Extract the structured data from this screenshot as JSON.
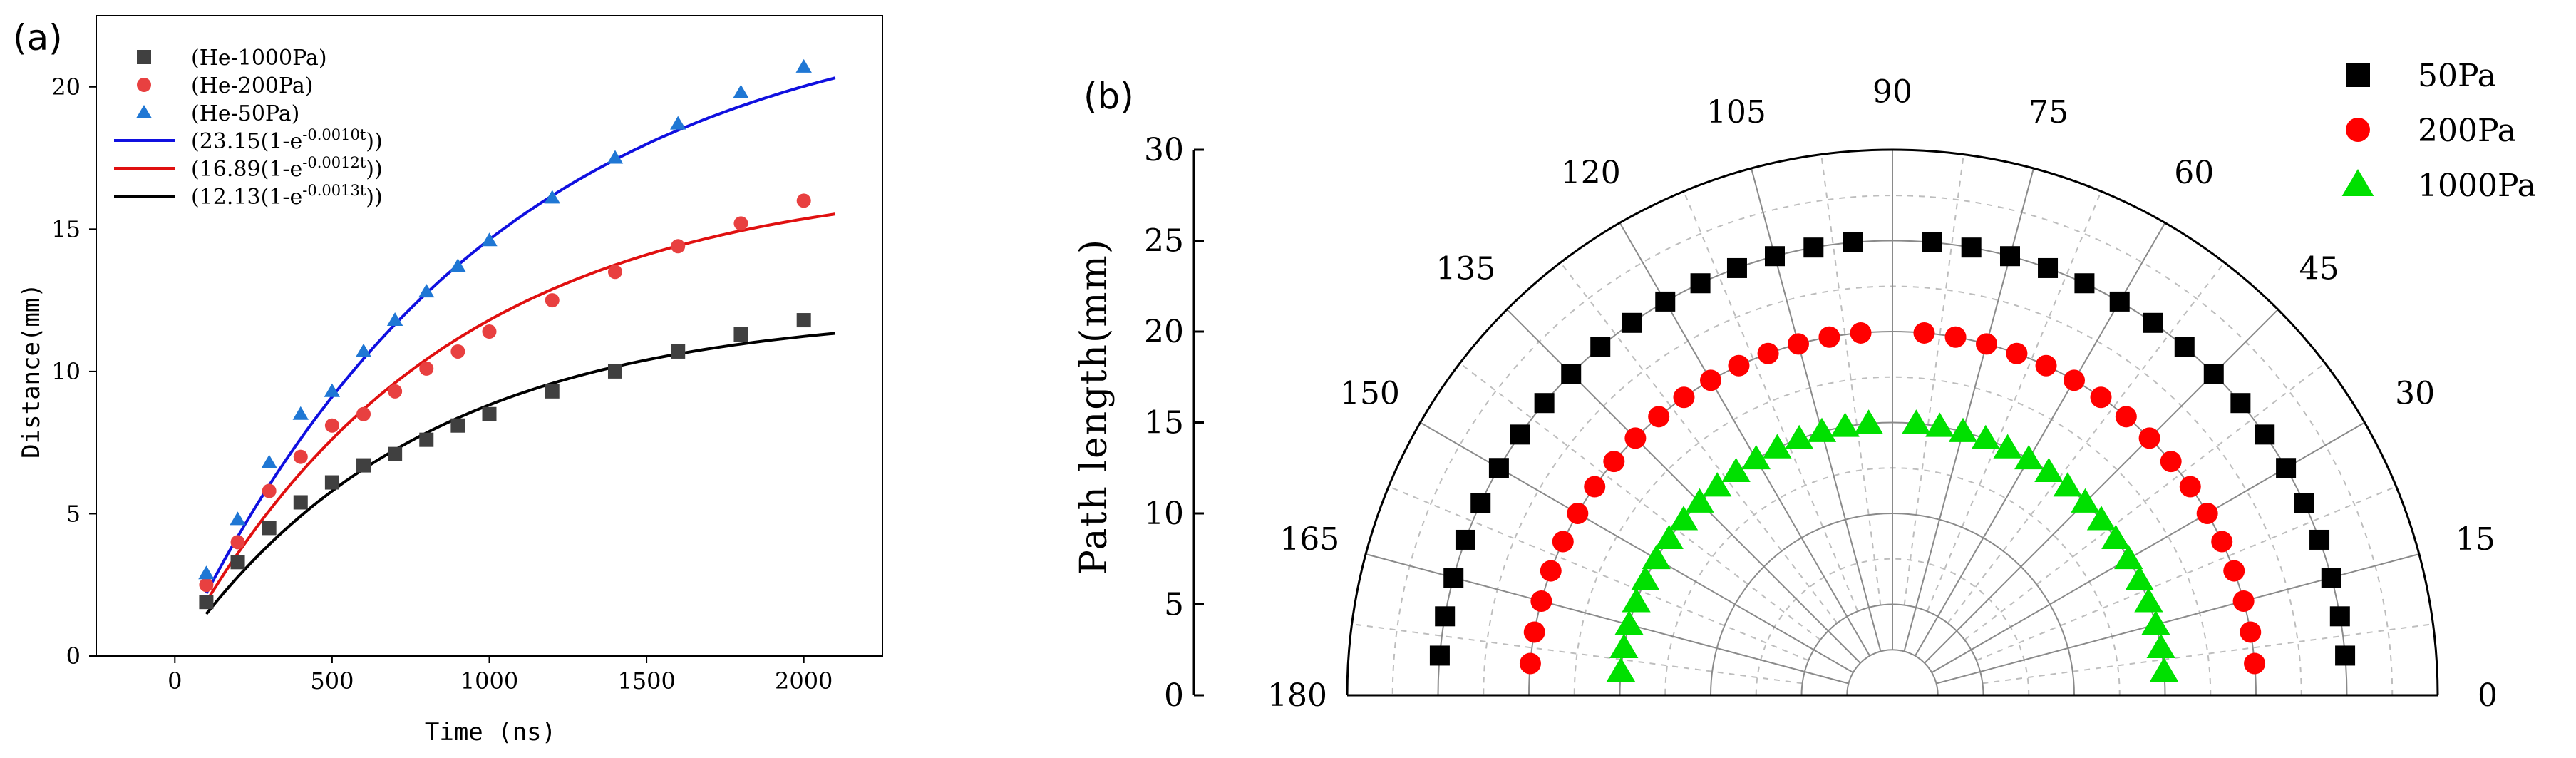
{
  "chart_data": [
    {
      "panel_label": "(a)",
      "type": "scatter",
      "xlabel": "Time (ns)",
      "ylabel": "Distance(mm)",
      "xlim": [
        -250,
        2250
      ],
      "ylim": [
        0,
        22.5
      ],
      "xticks": [
        0,
        500,
        1000,
        1500,
        2000
      ],
      "yticks": [
        0,
        5,
        10,
        15,
        20
      ],
      "legend_position": "top-left",
      "series": [
        {
          "name": "(He-1000Pa)",
          "marker": "square",
          "color": "#404040",
          "x": [
            100,
            200,
            300,
            400,
            500,
            600,
            700,
            800,
            900,
            1000,
            1200,
            1400,
            1600,
            1800,
            2000
          ],
          "y": [
            1.9,
            3.3,
            4.5,
            5.4,
            6.1,
            6.7,
            7.1,
            7.6,
            8.1,
            8.5,
            9.3,
            10.0,
            10.7,
            11.3,
            11.8
          ]
        },
        {
          "name": "(He-200Pa)",
          "marker": "circle",
          "color": "#e84040",
          "x": [
            100,
            200,
            300,
            400,
            500,
            600,
            700,
            800,
            900,
            1000,
            1200,
            1400,
            1600,
            1800,
            2000
          ],
          "y": [
            2.5,
            4.0,
            5.8,
            7.0,
            8.1,
            8.5,
            9.3,
            10.1,
            10.7,
            11.4,
            12.5,
            13.5,
            14.4,
            15.2,
            16.0
          ]
        },
        {
          "name": "(He-50Pa)",
          "marker": "triangle",
          "color": "#1f77d4",
          "x": [
            100,
            200,
            300,
            400,
            500,
            600,
            700,
            800,
            900,
            1000,
            1200,
            1400,
            1600,
            1800,
            2000
          ],
          "y": [
            2.9,
            4.8,
            6.8,
            8.5,
            9.3,
            10.7,
            11.8,
            12.8,
            13.7,
            14.6,
            16.1,
            17.5,
            18.7,
            19.8,
            20.7
          ]
        }
      ],
      "fits": [
        {
          "label_prefix": "(23.15(1-e",
          "label_exp": "-0.0010t",
          "label_suffix": "))",
          "A": 23.15,
          "k": 0.001,
          "color": "#1010e0"
        },
        {
          "label_prefix": "(16.89(1-e",
          "label_exp": "-0.0012t",
          "label_suffix": "))",
          "A": 16.89,
          "k": 0.0012,
          "color": "#e01010"
        },
        {
          "label_prefix": "(12.13(1-e",
          "label_exp": "-0.0013t",
          "label_suffix": "))",
          "A": 12.13,
          "k": 0.0013,
          "color": "#000000"
        }
      ],
      "fit_x_range": [
        100,
        2100
      ]
    },
    {
      "panel_label": "(b)",
      "type": "scatter",
      "projection": "polar",
      "ylabel": "Path length(mm)",
      "radial_ticks": [
        0,
        5,
        10,
        15,
        20,
        25,
        30
      ],
      "rlim": [
        0,
        30
      ],
      "angle_ticks_deg": [
        0,
        15,
        30,
        45,
        60,
        75,
        90,
        105,
        120,
        135,
        150,
        165,
        180
      ],
      "legend_position": "top-right",
      "series": [
        {
          "name": "50Pa",
          "marker": "square",
          "color": "#000000",
          "r": 25,
          "theta_deg": [
            5,
            10,
            15,
            20,
            25,
            30,
            35,
            40,
            45,
            50,
            55,
            60,
            65,
            70,
            75,
            80,
            85,
            95,
            100,
            105,
            110,
            115,
            120,
            125,
            130,
            135,
            140,
            145,
            150,
            155,
            160,
            165,
            170,
            175
          ]
        },
        {
          "name": "200Pa",
          "marker": "circle",
          "color": "#ff0000",
          "r": 20,
          "theta_deg": [
            5,
            10,
            15,
            20,
            25,
            30,
            35,
            40,
            45,
            50,
            55,
            60,
            65,
            70,
            75,
            80,
            85,
            95,
            100,
            105,
            110,
            115,
            120,
            125,
            130,
            135,
            140,
            145,
            150,
            155,
            160,
            165,
            170,
            175
          ]
        },
        {
          "name": "1000Pa",
          "marker": "triangle",
          "color": "#00e000",
          "r": 15,
          "theta_deg": [
            5,
            10,
            15,
            20,
            25,
            30,
            35,
            40,
            45,
            50,
            55,
            60,
            65,
            70,
            75,
            80,
            85,
            95,
            100,
            105,
            110,
            115,
            120,
            125,
            130,
            135,
            140,
            145,
            150,
            155,
            160,
            165,
            170,
            175
          ]
        }
      ]
    }
  ]
}
